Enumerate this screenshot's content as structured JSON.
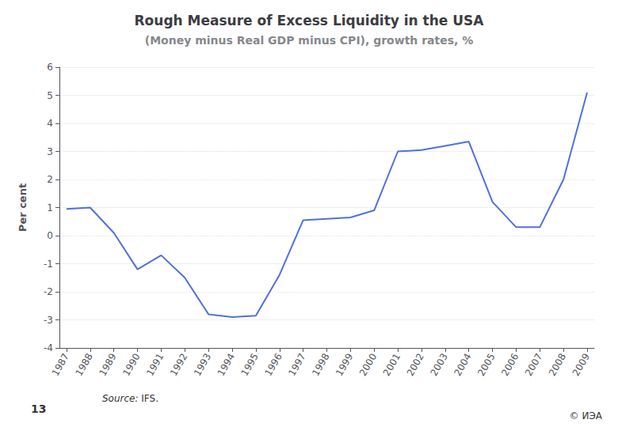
{
  "chart_data": {
    "type": "line",
    "title": "Rough Measure of Excess Liquidity in the USA",
    "subtitle": "(Money minus Real GDP minus CPI), growth rates, %",
    "ylabel": "Per cent",
    "annotations": [
      "Source:",
      "IFS.",
      "13",
      "© ИЭА"
    ],
    "x": [
      1987,
      1988,
      1989,
      1990,
      1991,
      1992,
      1993,
      1994,
      1995,
      1996,
      1997,
      1998,
      1999,
      2000,
      2001,
      2002,
      2003,
      2004,
      2005,
      2006,
      2007,
      2008,
      2009
    ],
    "values": [
      0.95,
      1.0,
      0.1,
      -1.2,
      -0.7,
      -1.5,
      -2.8,
      -2.9,
      -2.85,
      -1.4,
      0.55,
      0.6,
      0.65,
      0.9,
      3.0,
      3.05,
      3.2,
      3.35,
      1.2,
      0.3,
      0.3,
      2.0,
      5.1
    ],
    "xlim": [
      1986.7,
      2009.3
    ],
    "xticks": [
      1987,
      1988,
      1989,
      1990,
      1991,
      1992,
      1993,
      1994,
      1995,
      1996,
      1997,
      1998,
      1999,
      2000,
      2001,
      2002,
      2003,
      2004,
      2005,
      2006,
      2007,
      2008,
      2009
    ],
    "ylim": [
      -4,
      6
    ],
    "yticks": [
      -4,
      -3,
      -2,
      -1,
      0,
      1,
      2,
      3,
      4,
      5,
      6
    ],
    "grid": true
  }
}
